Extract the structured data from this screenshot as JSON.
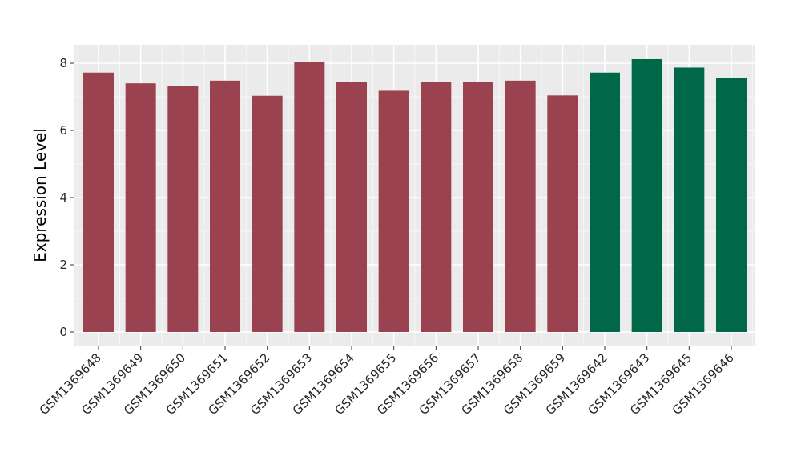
{
  "chart_data": {
    "type": "bar",
    "title": "",
    "xlabel": "",
    "ylabel": "Expression Level",
    "categories": [
      "GSM1369648",
      "GSM1369649",
      "GSM1369650",
      "GSM1369651",
      "GSM1369652",
      "GSM1369653",
      "GSM1369654",
      "GSM1369655",
      "GSM1369656",
      "GSM1369657",
      "GSM1369658",
      "GSM1369659",
      "GSM1369642",
      "GSM1369643",
      "GSM1369645",
      "GSM1369646"
    ],
    "values": [
      7.72,
      7.4,
      7.31,
      7.48,
      7.03,
      8.04,
      7.45,
      7.18,
      7.43,
      7.43,
      7.48,
      7.04,
      7.72,
      8.12,
      7.87,
      7.57
    ],
    "bar_colors": [
      "#9a4250",
      "#9a4250",
      "#9a4250",
      "#9a4250",
      "#9a4250",
      "#9a4250",
      "#9a4250",
      "#9a4250",
      "#9a4250",
      "#9a4250",
      "#9a4250",
      "#9a4250",
      "#006848",
      "#006848",
      "#006848",
      "#006848"
    ],
    "group_colors": {
      "left_group": "#9a4250",
      "right_group": "#006848"
    },
    "yticks": [
      0,
      2,
      4,
      6,
      8
    ],
    "yticks_minor": [
      1,
      3,
      5,
      7
    ],
    "ylim": [
      0,
      8.53
    ],
    "grid": "on",
    "legend": "none",
    "panel_bg": "#ebebeb",
    "grid_major_color": "#ffffff",
    "grid_minor_color": "#f7f7f7",
    "tick_mark_color": "#333333",
    "tick_label_color": "#262626",
    "axis_title_color": "#000000"
  }
}
